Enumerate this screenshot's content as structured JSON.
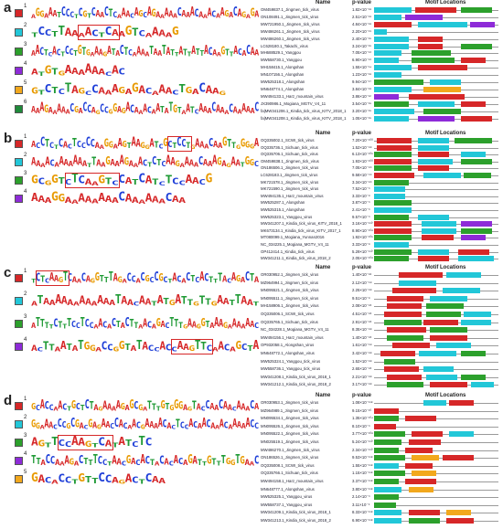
{
  "colors": {
    "motif_colors": [
      "#d62728",
      "#22c7d8",
      "#2ca02c",
      "#8e2bd8",
      "#f2a81d",
      "#1f8a3a",
      "#5e8a3a"
    ],
    "nucleotide": {
      "A": "#d62728",
      "C": "#1f3fd8",
      "G": "#e89a00",
      "T": "#1f9a35"
    }
  },
  "headers": {
    "name": "Name",
    "pvalue": "p-value",
    "motif": "Motif Locations"
  },
  "panels": [
    {
      "label": "a",
      "motifs": [
        {
          "num": "1",
          "seq": "AGGAAATCCCTCGTCAACTCAAACAGCAGAAAAACAAACAAACAAGACAGAGA"
        },
        {
          "num": "2",
          "seq": "TCCTTAAAACTCAAGTCAAAAG"
        },
        {
          "num": "3",
          "seq": "AACTCACTCCTGTGAAAGATACTCAAAATAATATTATTATTACAAGTTACACAA"
        },
        {
          "num": "4",
          "seq": "ATGTGAAAAAACAC"
        },
        {
          "num": "5",
          "seq": "GTCTCTAGCCAAAGAGACAAACTGACAAG"
        },
        {
          "num": "6",
          "seq": "AAAGAAAAACGACCAGCCGGAGACAAACAATATGTAATCAAACAAACAAAAAC"
        }
      ],
      "rows": [
        {
          "name": "OM459837.1_Jingmen_tick_virus",
          "p": "1.82×10⁻¹⁸"
        },
        {
          "name": "ON108491.1_Jingmen_tick_virus",
          "p": "2.51×10⁻¹⁸"
        },
        {
          "name": "MW721950.1_Jingmen_tick_virus",
          "p": "4.84×10⁻¹⁸"
        },
        {
          "name": "MW486261.1_Jingmen_tick_virus",
          "p": "2.20×10⁻¹⁹"
        },
        {
          "name": "MW486260.1_Jingmen_tick_virus",
          "p": "2.40×10⁻¹⁵"
        },
        {
          "name": "LC628180.1_Takachi_virus",
          "p": "3.24×10⁻¹⁵"
        },
        {
          "name": "MH688529.1_Yanggou",
          "p": "7.05×10⁻¹³"
        },
        {
          "name": "MW558730.1_Yanggou",
          "p": "6.90×10⁻¹³"
        },
        {
          "name": "MH158415.1_Alongshan",
          "p": "1.55×10⁻¹⁴"
        },
        {
          "name": "MN107156.1_Alongshan",
          "p": "1.23×10⁻¹⁸"
        },
        {
          "name": "MW525318.1_Alongshan",
          "p": "9.94×10⁻¹⁷"
        },
        {
          "name": "MN648774.1_Alongshan",
          "p": "3.84×10⁻¹⁸"
        },
        {
          "name": "MW494133.1_Harz_mountain_virus",
          "p": "3.86×10⁻¹²"
        },
        {
          "name": "JX390986.1_Mogiana_MGTV_V4_11",
          "p": "3.54×10⁻¹⁵"
        },
        {
          "name": "fa|MW341206.1_Kindia_tick_virus_KITV_2018_1",
          "p": "3.20×10⁻¹⁵"
        },
        {
          "name": "fa|MW341208.1_Kindia_tick_virus_KITV_2018_1",
          "p": "1.05×10⁻¹⁵"
        }
      ]
    },
    {
      "label": "b",
      "motifs": [
        {
          "num": "1",
          "seq": "ACCTCTCACTCCCCAAGGAAGTAAGGATCGCTCCTGAAACAAGTTGGGGA"
        },
        {
          "num": "2",
          "seq": "AAAACAAAAAAATTAAGAAAGAAACTCTCAAGAAAACAAAGAGAATGGC"
        },
        {
          "num": "3",
          "seq": "GCGGTCTCAAGTCCATCATCTCCAACG"
        },
        {
          "num": "4",
          "seq": "AAAGGAAAAAAAACAAAAAACAA"
        }
      ],
      "rows": [
        {
          "name": "OQ335002.1_SCWI_tick_virus",
          "p": "7.20×10⁻¹⁰⁰"
        },
        {
          "name": "OQ335736.1_Sichuan_tick_virus",
          "p": "1.52×10⁻⁸⁸"
        },
        {
          "name": "OQ335706.1_Sichuan_tick_virus",
          "p": "6.13×10⁻¹⁰⁶"
        },
        {
          "name": "OM459838.1_Jingmen_tick_virus",
          "p": "1.93×10⁻¹⁰⁰"
        },
        {
          "name": "ON186506.1_Jingmen_tick_virus",
          "p": "7.05×10⁻⁸⁹"
        },
        {
          "name": "LC628183.1_Jingmen_tick_virus",
          "p": "9.58×10⁻⁹⁹"
        },
        {
          "name": "MK721578.1_Jingmen_tick_virus",
          "p": "3.34×10⁻⁸⁹"
        },
        {
          "name": "MK721590.1_Jingmen_tick_virus",
          "p": "7.52×10⁻⁹"
        },
        {
          "name": "MW494135.1_Harz_mountain_virus",
          "p": "3.33×10⁻⁸"
        },
        {
          "name": "MW525287.1_Alongshan",
          "p": "3.87×10⁻⁹"
        },
        {
          "name": "MW525315.1_Alongshan",
          "p": "2.41×10⁻⁹"
        },
        {
          "name": "MW525323.1_Yanggou_virus",
          "p": "9.57×10⁻⁹"
        },
        {
          "name": "MW341207.1_Kindia_tick_virus_KITV_2018_1",
          "p": "3.16×10⁻¹¹⁰"
        },
        {
          "name": "MK673134.1_Kindia_tick_virus_KITV_2017_1",
          "p": "8.90×10⁻¹⁰⁸"
        },
        {
          "name": "MT080099.1_Mogiana_Yunnan2016",
          "p": "1.92×10⁻¹⁰⁵"
        },
        {
          "name": "NC_034225.1_Mogiana_MGTV_V4_11",
          "p": "3.33×10⁻⁸"
        },
        {
          "name": "OP412414.1_Kindia_tick_virus",
          "p": "5.29×10⁻¹¹⁰"
        },
        {
          "name": "MW341211.1_Kindia_tick_virus_2018_2",
          "p": "2.05×10⁻¹⁰⁸"
        }
      ]
    },
    {
      "label": "c",
      "motifs": [
        {
          "num": "1",
          "seq": "TCTCAAGTCAACAGGTTTAGACCACGCCGCTACACTCACTTTACAGACTA"
        },
        {
          "num": "2",
          "seq": "ATAAAAAAAAAAAATAACAATATGATTGTTGAATTAAT"
        },
        {
          "num": "3",
          "seq": "ATTTTCTTTCCTCCAACACTACTTAACAGACTTTGAAGGTAAAGAAAAAAC"
        },
        {
          "num": "4",
          "seq": "ACTTAATATGGACCGGTATACCACCAAGTTCAACAGCTA"
        }
      ],
      "rows": [
        {
          "name": "OR030952.1_Jingmen_tick_virus",
          "p": "1.40×10⁻⁸²"
        },
        {
          "name": "MZ964994.1_Jingmen_tick_virus",
          "p": "2.12×10⁻⁶⁸"
        },
        {
          "name": "MN095521.1_Jingmen_tick_virus",
          "p": "2.25×10⁻⁸⁸"
        },
        {
          "name": "MN095511.1_Jingmen_tick_virus",
          "p": "9.51×10⁻⁸"
        },
        {
          "name": "MH158906.1_Jingmen_tick_virus",
          "p": "2.08×10⁻⁸³"
        },
        {
          "name": "OQ335006.1_SCWI_tick_virus",
          "p": "4.51×10⁻⁸³"
        },
        {
          "name": "OQ335765.1_Sichuan_tick_virus",
          "p": "2.91×10⁻⁸³"
        },
        {
          "name": "NC_034228.1_Mogiana_MGTV_V4_11",
          "p": "8.35×10⁻⁸⁸"
        },
        {
          "name": "MW494156.1_Harz_mountain_virus",
          "p": "1.40×10⁻⁸³"
        },
        {
          "name": "OP932058.1_Alongshan_virus",
          "p": "1.61×10⁻⁶⁸"
        },
        {
          "name": "MN648772.1_Alongshan_virus",
          "p": "3.42×10⁻⁸⁸"
        },
        {
          "name": "MW525324.1_Yanggou_tick_virus",
          "p": "1.52×10⁻⁸⁸"
        },
        {
          "name": "MW558736.1_Yanggou_tick_virus",
          "p": "2.65×10⁻⁸³"
        },
        {
          "name": "MW341208.1_Kindia_tick_virus_2018_1",
          "p": "2.21×10⁻⁸⁸"
        },
        {
          "name": "MW341212.1_Kindia_tick_virus_2018_2",
          "p": "3.17×10⁻⁸⁸"
        }
      ]
    },
    {
      "label": "d",
      "motifs": [
        {
          "num": "1",
          "seq": "GCACCAACTGCTCTAGAAAAGAGCGATTTGTGGGAGTACCAACAACAAACA"
        },
        {
          "num": "2",
          "seq": "GGAAACCCGCGACGAGAACCACAACGAAAACACTCCACAACAAACAAAAACC"
        },
        {
          "num": "3",
          "seq": "AGTTCCAAGTCATATCTC"
        },
        {
          "num": "4",
          "seq": "TTACCAAAGACTTTCCTAACGACACTACACACAGATTGTTTGGTGAAC"
        },
        {
          "num": "5",
          "seq": "GACACCTGTTCCAGACTCAA"
        }
      ],
      "rows": [
        {
          "name": "OR030953.1_Jingmen_tick_virus",
          "p": "1.08×10⁻¹¹⁸"
        },
        {
          "name": "MZ964989.1_Jingmen_tick_virus",
          "p": "9.15×10⁻¹⁰"
        },
        {
          "name": "MN095534.1_Jingmen_tick_virus",
          "p": "1.35×10⁻¹⁰⁴"
        },
        {
          "name": "MN095526.1_Jingmen_tick_virus",
          "p": "8.10×10⁻⁹"
        },
        {
          "name": "MN095522.1_Jingmen_tick_virus",
          "p": "3.77×10⁻¹⁰⁸"
        },
        {
          "name": "MN025519.1_Jingmen_tick_virus",
          "p": "5.24×10⁻¹¹⁰"
        },
        {
          "name": "MW486270.1_Jingmen_tick_virus",
          "p": "2.34×10⁻¹¹⁰"
        },
        {
          "name": "ON186526.1_Jingmen_tick_virus",
          "p": "9.53×10⁻¹¹⁸"
        },
        {
          "name": "OQ335008.1_SCWI_tick_virus",
          "p": "1.55×10⁻¹¹⁸"
        },
        {
          "name": "OQ335766.1_Sichuan_tick_virus",
          "p": "1.15×10⁻¹¹⁸"
        },
        {
          "name": "MW494158.1_Harz_mountain_virus",
          "p": "3.37×10⁻¹¹⁸"
        },
        {
          "name": "MN648777.1_Alongshan_virus",
          "p": "3.80×10⁻¹¹⁸"
        },
        {
          "name": "MW525325.1_Yanggou_virus",
          "p": "2.14×10⁻⁹"
        },
        {
          "name": "MW558737.1_Yanggou_virus",
          "p": "3.11×10⁻⁹"
        },
        {
          "name": "MW341209.1_Kindia_tick_virus_2018_1",
          "p": "8.33×10⁻¹¹⁸"
        },
        {
          "name": "MW341213.1_Kindia_tick_virus_2018_2",
          "p": "6.90×10⁻¹¹⁸"
        }
      ]
    }
  ]
}
